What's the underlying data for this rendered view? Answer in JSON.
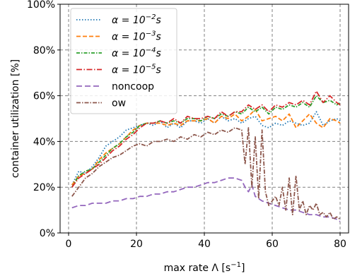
{
  "chart_data": {
    "type": "line",
    "xlabel_prefix": "max rate Λ [",
    "xlabel_unit": "s",
    "xlabel_exp": "−1",
    "xlabel_suffix": "]",
    "ylabel": "container utilization [%]",
    "xlim": [
      -2.5,
      82.5
    ],
    "ylim": [
      0,
      100
    ],
    "x_ticks": [
      0,
      20,
      40,
      60,
      80
    ],
    "y_ticks": [
      0,
      20,
      40,
      60,
      80,
      100
    ],
    "y_tick_labels": [
      "0%",
      "20%",
      "40%",
      "60%",
      "80%",
      "100%"
    ],
    "grid": true,
    "legend_position": "top-left",
    "series": [
      {
        "name": "α = 10⁻²s",
        "legend_base": "α = 10",
        "legend_exp": "−2",
        "legend_tail": "s",
        "color": "#1f77b4",
        "dash": "1.5,2.5",
        "x": [
          1,
          3,
          5,
          7,
          9,
          11,
          13,
          15,
          17,
          19,
          21,
          23,
          25,
          27,
          29,
          31,
          33,
          35,
          37,
          39,
          41,
          43,
          45,
          47,
          49,
          51,
          53,
          55,
          57,
          59,
          61,
          63,
          65,
          67,
          69,
          71,
          73,
          75,
          77,
          79,
          80
        ],
        "y": [
          21,
          27,
          26,
          29,
          33,
          38,
          40,
          42,
          45,
          46,
          47,
          48,
          47,
          49,
          46,
          48,
          46,
          49,
          49,
          48,
          50,
          48,
          51,
          49,
          50,
          48,
          50,
          51,
          47,
          46,
          48,
          47,
          49,
          48,
          47,
          48,
          53,
          47,
          49,
          50,
          49
        ]
      },
      {
        "name": "α = 10⁻³s",
        "legend_base": "α = 10",
        "legend_exp": "−3",
        "legend_tail": "s",
        "color": "#ff7f0e",
        "dash": "6,3",
        "x": [
          1,
          3,
          5,
          7,
          9,
          11,
          13,
          15,
          17,
          19,
          21,
          23,
          25,
          27,
          29,
          31,
          33,
          35,
          37,
          39,
          41,
          43,
          45,
          47,
          49,
          51,
          53,
          55,
          57,
          59,
          61,
          63,
          65,
          67,
          69,
          71,
          73,
          75,
          77,
          79,
          80
        ],
        "y": [
          21,
          25,
          26,
          28,
          32,
          35,
          37,
          39,
          42,
          45,
          47,
          48,
          48,
          48,
          47,
          48,
          47,
          49,
          49,
          49,
          50,
          48,
          51,
          50,
          52,
          49,
          51,
          54,
          49,
          50,
          51,
          49,
          52,
          46,
          49,
          52,
          48,
          46,
          50,
          49,
          48
        ]
      },
      {
        "name": "α = 10⁻⁴s",
        "legend_base": "α = 10",
        "legend_exp": "−4",
        "legend_tail": "s",
        "color": "#2ca02c",
        "dash": "5,2,1.5,2",
        "x": [
          1,
          3,
          5,
          7,
          9,
          11,
          13,
          15,
          17,
          19,
          21,
          23,
          25,
          27,
          29,
          31,
          33,
          35,
          37,
          39,
          41,
          43,
          45,
          47,
          49,
          51,
          53,
          55,
          57,
          59,
          61,
          63,
          65,
          67,
          69,
          71,
          73,
          75,
          77,
          79,
          80
        ],
        "y": [
          20,
          25,
          27,
          28,
          31,
          34,
          37,
          39,
          42,
          44,
          47,
          48,
          48,
          49,
          48,
          49,
          48,
          50,
          50,
          49,
          51,
          50,
          52,
          51,
          53,
          52,
          55,
          53,
          55,
          52,
          55,
          54,
          56,
          55,
          57,
          55,
          60,
          57,
          58,
          56,
          57
        ]
      },
      {
        "name": "α = 10⁻⁵s",
        "legend_base": "α = 10",
        "legend_exp": "−5",
        "legend_tail": "s",
        "color": "#d62728",
        "dash": "8,2.5,1.5,2.5",
        "x": [
          1,
          3,
          5,
          7,
          9,
          11,
          13,
          15,
          17,
          19,
          21,
          23,
          25,
          27,
          29,
          31,
          33,
          35,
          37,
          39,
          41,
          43,
          45,
          47,
          49,
          51,
          53,
          55,
          57,
          59,
          61,
          63,
          65,
          67,
          69,
          71,
          73,
          75,
          77,
          79,
          80
        ],
        "y": [
          20,
          24,
          26,
          28,
          30,
          33,
          36,
          38,
          41,
          43,
          46,
          48,
          48,
          49,
          48,
          50,
          48,
          51,
          50,
          50,
          51,
          50,
          53,
          51,
          53,
          53,
          56,
          54,
          56,
          53,
          56,
          55,
          57,
          56,
          58,
          56,
          62,
          57,
          60,
          57,
          56
        ]
      },
      {
        "name": "noncoop",
        "legend_base": "noncoop",
        "legend_exp": "",
        "legend_tail": "",
        "color": "#9467bd",
        "dash": "8,4",
        "x": [
          1,
          3,
          5,
          7,
          9,
          11,
          13,
          15,
          17,
          19,
          21,
          23,
          25,
          27,
          29,
          31,
          33,
          35,
          37,
          39,
          41,
          43,
          45,
          47,
          49,
          51,
          52,
          53,
          54,
          55,
          57,
          59,
          61,
          63,
          65,
          67,
          69,
          71,
          73,
          75,
          77,
          79,
          80
        ],
        "y": [
          11,
          12,
          12,
          13,
          13,
          13,
          14,
          14,
          15,
          15,
          16,
          16,
          17,
          17,
          18,
          18,
          19,
          20,
          20,
          21,
          22,
          22,
          23,
          24,
          24,
          23,
          20,
          18,
          21,
          16,
          14,
          13,
          12,
          11,
          10,
          10,
          9,
          8,
          8,
          7,
          7,
          6,
          5
        ]
      },
      {
        "name": "ow",
        "legend_base": "ow",
        "legend_exp": "",
        "legend_tail": "",
        "color": "#8c564b",
        "dash": "6,2,1.5,2",
        "x": [
          1,
          3,
          5,
          7,
          9,
          11,
          13,
          15,
          17,
          19,
          21,
          23,
          25,
          27,
          29,
          31,
          33,
          35,
          37,
          39,
          41,
          43,
          45,
          47,
          49,
          51,
          52,
          53,
          54,
          55,
          56,
          57,
          58,
          59,
          60,
          61,
          62,
          63,
          64,
          65,
          66,
          67,
          68,
          69,
          70,
          71,
          72,
          73,
          74,
          75,
          76,
          77,
          78,
          79,
          80
        ],
        "y": [
          16,
          20,
          24,
          26,
          29,
          31,
          33,
          34,
          36,
          38,
          39,
          38,
          40,
          40,
          41,
          40,
          42,
          41,
          43,
          42,
          44,
          43,
          45,
          44,
          46,
          45,
          30,
          46,
          20,
          42,
          15,
          45,
          18,
          12,
          14,
          16,
          12,
          20,
          10,
          24,
          8,
          25,
          10,
          14,
          8,
          12,
          10,
          13,
          8,
          9,
          7,
          9,
          6,
          7,
          6
        ]
      }
    ]
  }
}
